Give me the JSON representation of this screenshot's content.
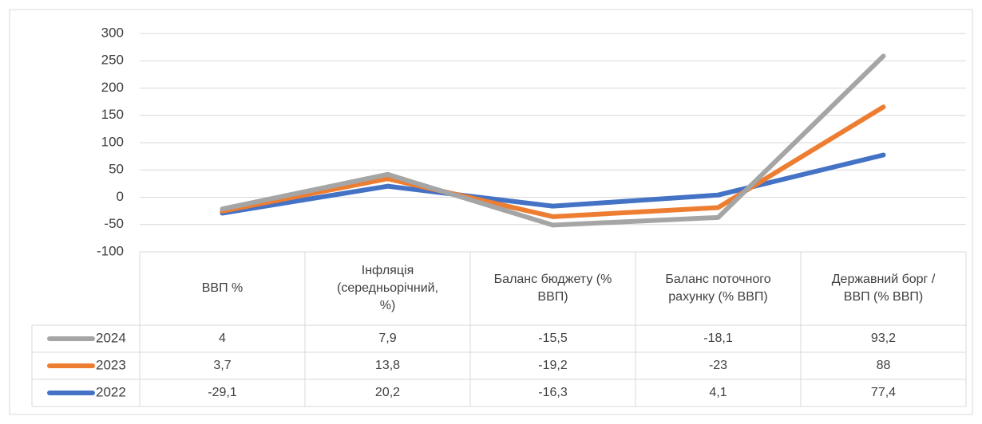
{
  "chart_data": {
    "type": "line",
    "stacked": true,
    "categories": [
      "ВВП %",
      "Інфляція (середньорічний, %)",
      "Баланс бюджету (% ВВП)",
      "Баланс поточного рахунку (% ВВП)",
      "Державний борг / ВВП (% ВВП)"
    ],
    "series": [
      {
        "name": "2022",
        "color": "#4472c4",
        "values": [
          -29.1,
          20.2,
          -16.3,
          4.1,
          77.4
        ],
        "value_labels": [
          "-29,1",
          "20,2",
          "-16,3",
          "4,1",
          "77,4"
        ]
      },
      {
        "name": "2023",
        "color": "#ed7d31",
        "values": [
          3.7,
          13.8,
          -19.2,
          -23,
          88
        ],
        "value_labels": [
          "3,7",
          "13,8",
          "-19,2",
          "-23",
          "88"
        ]
      },
      {
        "name": "2024",
        "color": "#a5a5a5",
        "values": [
          4,
          7.9,
          -15.5,
          -18.1,
          93.2
        ],
        "value_labels": [
          "4",
          "7,9",
          "-15,5",
          "-18,1",
          "93,2"
        ]
      }
    ],
    "ylim": [
      -100,
      300
    ],
    "yticks": [
      -100,
      -50,
      0,
      50,
      100,
      150,
      200,
      250,
      300
    ],
    "grid": true
  }
}
